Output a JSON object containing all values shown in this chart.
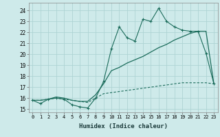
{
  "xlabel": "Humidex (Indice chaleur)",
  "background_color": "#ceeaea",
  "grid_color": "#aed4d4",
  "line_color": "#1a6b5a",
  "x_values": [
    0,
    1,
    2,
    3,
    4,
    5,
    6,
    7,
    8,
    9,
    10,
    11,
    12,
    13,
    14,
    15,
    16,
    17,
    18,
    19,
    20,
    21,
    22,
    23
  ],
  "line1_y": [
    15.8,
    15.5,
    15.9,
    16.0,
    15.9,
    15.4,
    15.2,
    15.1,
    16.0,
    17.5,
    20.5,
    22.5,
    21.5,
    21.2,
    23.2,
    23.0,
    24.2,
    23.0,
    22.5,
    22.2,
    22.1,
    22.1,
    20.1,
    17.3
  ],
  "line2_y": [
    15.8,
    15.8,
    15.9,
    16.1,
    16.0,
    15.8,
    15.7,
    15.7,
    16.3,
    17.3,
    18.5,
    18.8,
    19.2,
    19.5,
    19.8,
    20.2,
    20.6,
    20.9,
    21.3,
    21.6,
    21.9,
    22.1,
    22.1,
    17.3
  ],
  "line3_y": [
    15.8,
    15.8,
    15.9,
    16.0,
    15.9,
    15.8,
    15.7,
    15.6,
    16.0,
    16.4,
    16.5,
    16.6,
    16.7,
    16.8,
    16.9,
    17.0,
    17.1,
    17.2,
    17.3,
    17.4,
    17.4,
    17.4,
    17.4,
    17.3
  ],
  "ylim": [
    14.7,
    24.7
  ],
  "xlim": [
    -0.5,
    23.5
  ],
  "yticks": [
    15,
    16,
    17,
    18,
    19,
    20,
    21,
    22,
    23,
    24
  ],
  "xticks": [
    0,
    1,
    2,
    3,
    4,
    5,
    6,
    7,
    8,
    9,
    10,
    11,
    12,
    13,
    14,
    15,
    16,
    17,
    18,
    19,
    20,
    21,
    22,
    23
  ]
}
